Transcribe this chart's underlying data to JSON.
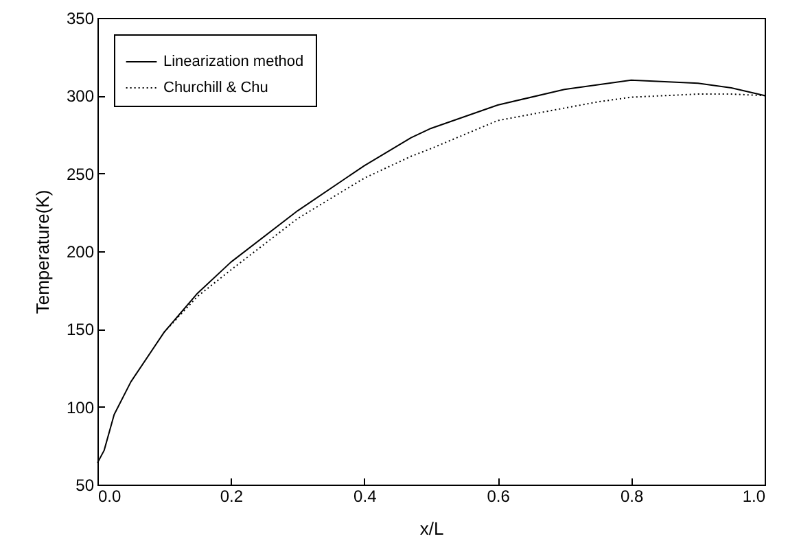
{
  "chart_data": {
    "type": "line",
    "xlabel": "x/L",
    "ylabel": "Temperature(K)",
    "xlim": [
      0,
      1
    ],
    "ylim": [
      50,
      350
    ],
    "xticks": [
      {
        "value": 0,
        "label": "0.0"
      },
      0.2,
      0.4,
      0.6,
      0.8,
      {
        "value": 1,
        "label": "1.0"
      }
    ],
    "yticks": [
      50,
      100,
      150,
      200,
      250,
      300,
      350
    ],
    "grid": false,
    "legend": "top left",
    "marker": "none",
    "x": [
      0,
      0.01,
      0.025,
      0.05,
      0.1,
      0.15,
      0.2,
      0.3,
      0.4,
      0.47,
      0.5,
      0.6,
      0.7,
      0.75,
      0.8,
      0.85,
      0.9,
      0.95,
      1.0
    ],
    "series": [
      {
        "name": "Linearization method",
        "color": "#000000",
        "line_style": "solid",
        "values": [
          64,
          72,
          95,
          116,
          148,
          173,
          193,
          226,
          255,
          273,
          279,
          294,
          304,
          307,
          310,
          309,
          308,
          305,
          300
        ]
      },
      {
        "name": "Churchill & Chu",
        "color": "#000000",
        "line_style": "dotted",
        "values": [
          null,
          null,
          null,
          null,
          148,
          171,
          188,
          221,
          247,
          261,
          266,
          284,
          292,
          296,
          299,
          300,
          301,
          301,
          300
        ]
      }
    ]
  }
}
